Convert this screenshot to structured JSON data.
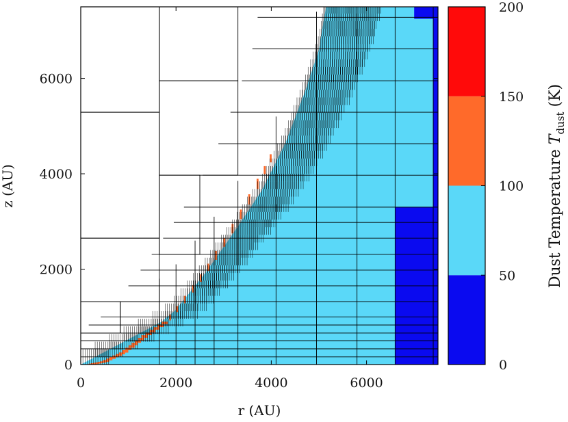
{
  "chart_data": {
    "type": "heatmap",
    "xlabel": "r (AU)",
    "ylabel": "z (AU)",
    "xlim": [
      0,
      7500
    ],
    "ylim": [
      0,
      7500
    ],
    "xticks": [
      0,
      2000,
      4000,
      6000
    ],
    "yticks": [
      0,
      2000,
      4000,
      6000
    ],
    "colorbar": {
      "label_prefix": "Dust Temperature ",
      "symbol": "T",
      "subscript": "dust",
      "unit": " (K)",
      "range": [
        0,
        200
      ],
      "ticks": [
        0,
        50,
        100,
        150,
        200
      ],
      "bins": [
        {
          "min": 0,
          "max": 50,
          "color": "#0a0af0"
        },
        {
          "min": 50,
          "max": 100,
          "color": "#5ad8f8"
        },
        {
          "min": 100,
          "max": 150,
          "color": "#ff6a2a"
        },
        {
          "min": 150,
          "max": 200,
          "color": "#ff0a0a"
        }
      ]
    },
    "cold_regions": [
      {
        "r0": 6600,
        "r1": 7500,
        "z0": 0,
        "z1": 3300,
        "temp_bin": "0-50"
      },
      {
        "r0": 7000,
        "r1": 7500,
        "z0": 7250,
        "z1": 7500,
        "temp_bin": "0-50"
      }
    ],
    "cold_empty_regions": [
      {
        "r0": 7400,
        "r1": 7500,
        "z0": 3300,
        "z1": 7250
      }
    ],
    "heated_boundary": [
      {
        "r": 0,
        "z": 0
      },
      {
        "r": 1700,
        "z": 900
      },
      {
        "r": 2000,
        "z": 1150
      },
      {
        "r": 2600,
        "z": 1900
      },
      {
        "r": 3200,
        "z": 2750
      },
      {
        "r": 3800,
        "z": 3650
      },
      {
        "r": 4300,
        "z": 4650
      },
      {
        "r": 4700,
        "z": 5700
      },
      {
        "r": 5000,
        "z": 6600
      },
      {
        "r": 5150,
        "z": 7500
      }
    ],
    "hot_shell": [
      {
        "r": 200,
        "z": 0
      },
      {
        "r": 500,
        "z": 60
      },
      {
        "r": 900,
        "z": 250
      },
      {
        "r": 1300,
        "z": 560
      },
      {
        "r": 1800,
        "z": 900
      },
      {
        "r": 2100,
        "z": 1250
      },
      {
        "r": 2450,
        "z": 1700
      },
      {
        "r": 2750,
        "z": 2150
      },
      {
        "r": 3100,
        "z": 2700
      },
      {
        "r": 3450,
        "z": 3300
      },
      {
        "r": 3800,
        "z": 3950
      },
      {
        "r": 4050,
        "z": 4450
      }
    ]
  }
}
